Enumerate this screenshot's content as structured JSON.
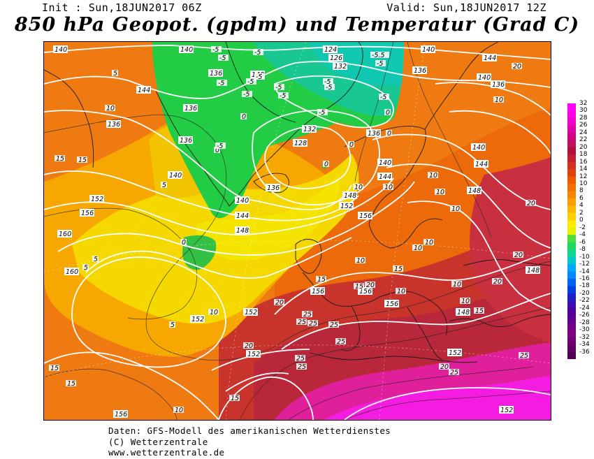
{
  "header": {
    "init": "Init : Sun,18JUN2017 06Z",
    "valid": "Valid: Sun,18JUN2017 12Z",
    "title": "850 hPa Geopot. (gpdm) und Temperatur (Grad C)"
  },
  "map": {
    "geopotential_labels": [
      "124",
      "126",
      "128",
      "132",
      "136",
      "140",
      "144",
      "148",
      "152",
      "156",
      "160"
    ],
    "temperature_labels": [
      "-5",
      "-5.5",
      "0",
      "5",
      "10",
      "15",
      "20",
      "25"
    ]
  },
  "legend": {
    "labels": [
      "32",
      "30",
      "28",
      "26",
      "24",
      "22",
      "20",
      "18",
      "16",
      "14",
      "12",
      "10",
      "8",
      "6",
      "4",
      "2",
      "0",
      "-2",
      "-4",
      "-6",
      "-8",
      "-10",
      "-12",
      "-14",
      "-16",
      "-18",
      "-20",
      "-22",
      "-24",
      "-26",
      "-28",
      "-30",
      "-32",
      "-34",
      "-36"
    ],
    "colors": [
      "#ff00ff",
      "#ff00e6",
      "#f000c8",
      "#e000a0",
      "#d00080",
      "#c01060",
      "#b01040",
      "#c02030",
      "#d03020",
      "#e04010",
      "#ee5a00",
      "#f27000",
      "#f58800",
      "#f9a000",
      "#fbb800",
      "#fcd000",
      "#ffea00",
      "#e6f000",
      "#50dc3c",
      "#20d860",
      "#10d890",
      "#00c8c8",
      "#00a8ff",
      "#0088ff",
      "#0064f0",
      "#0040e0",
      "#2020c8",
      "#3a10b0",
      "#500098",
      "#600090",
      "#700088",
      "#800080",
      "#700070",
      "#600060",
      "#500050"
    ]
  },
  "footer": {
    "line1": "Daten: GFS-Modell des amerikanischen Wetterdienstes",
    "line2": "(C) Wetterzentrale",
    "line3": "www.wetterzentrale.de"
  }
}
